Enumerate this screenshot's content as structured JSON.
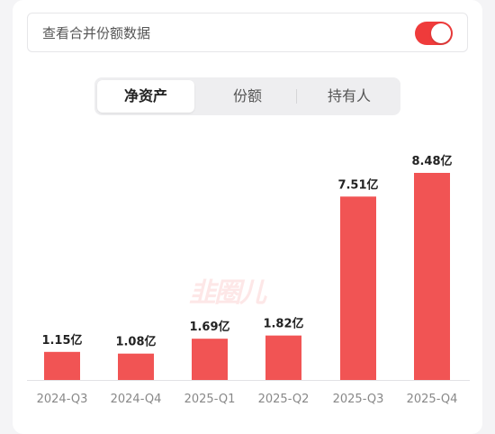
{
  "merge_toggle": {
    "label": "查看合并份额数据",
    "on": true
  },
  "tabs": [
    {
      "label": "净资产",
      "active": true
    },
    {
      "label": "份额",
      "active": false
    },
    {
      "label": "持有人",
      "active": false
    }
  ],
  "watermark": "韭圈儿",
  "colors": {
    "accent": "#ef3b3b",
    "bar": "#f15454"
  },
  "chart_data": {
    "type": "bar",
    "categories": [
      "2024-Q3",
      "2024-Q4",
      "2025-Q1",
      "2025-Q2",
      "2025-Q3",
      "2025-Q4"
    ],
    "values": [
      1.15,
      1.08,
      1.69,
      1.82,
      7.51,
      8.48
    ],
    "labels": [
      "1.15亿",
      "1.08亿",
      "1.69亿",
      "1.82亿",
      "7.51亿",
      "8.48亿"
    ],
    "ylim": [
      0,
      8.48
    ]
  }
}
